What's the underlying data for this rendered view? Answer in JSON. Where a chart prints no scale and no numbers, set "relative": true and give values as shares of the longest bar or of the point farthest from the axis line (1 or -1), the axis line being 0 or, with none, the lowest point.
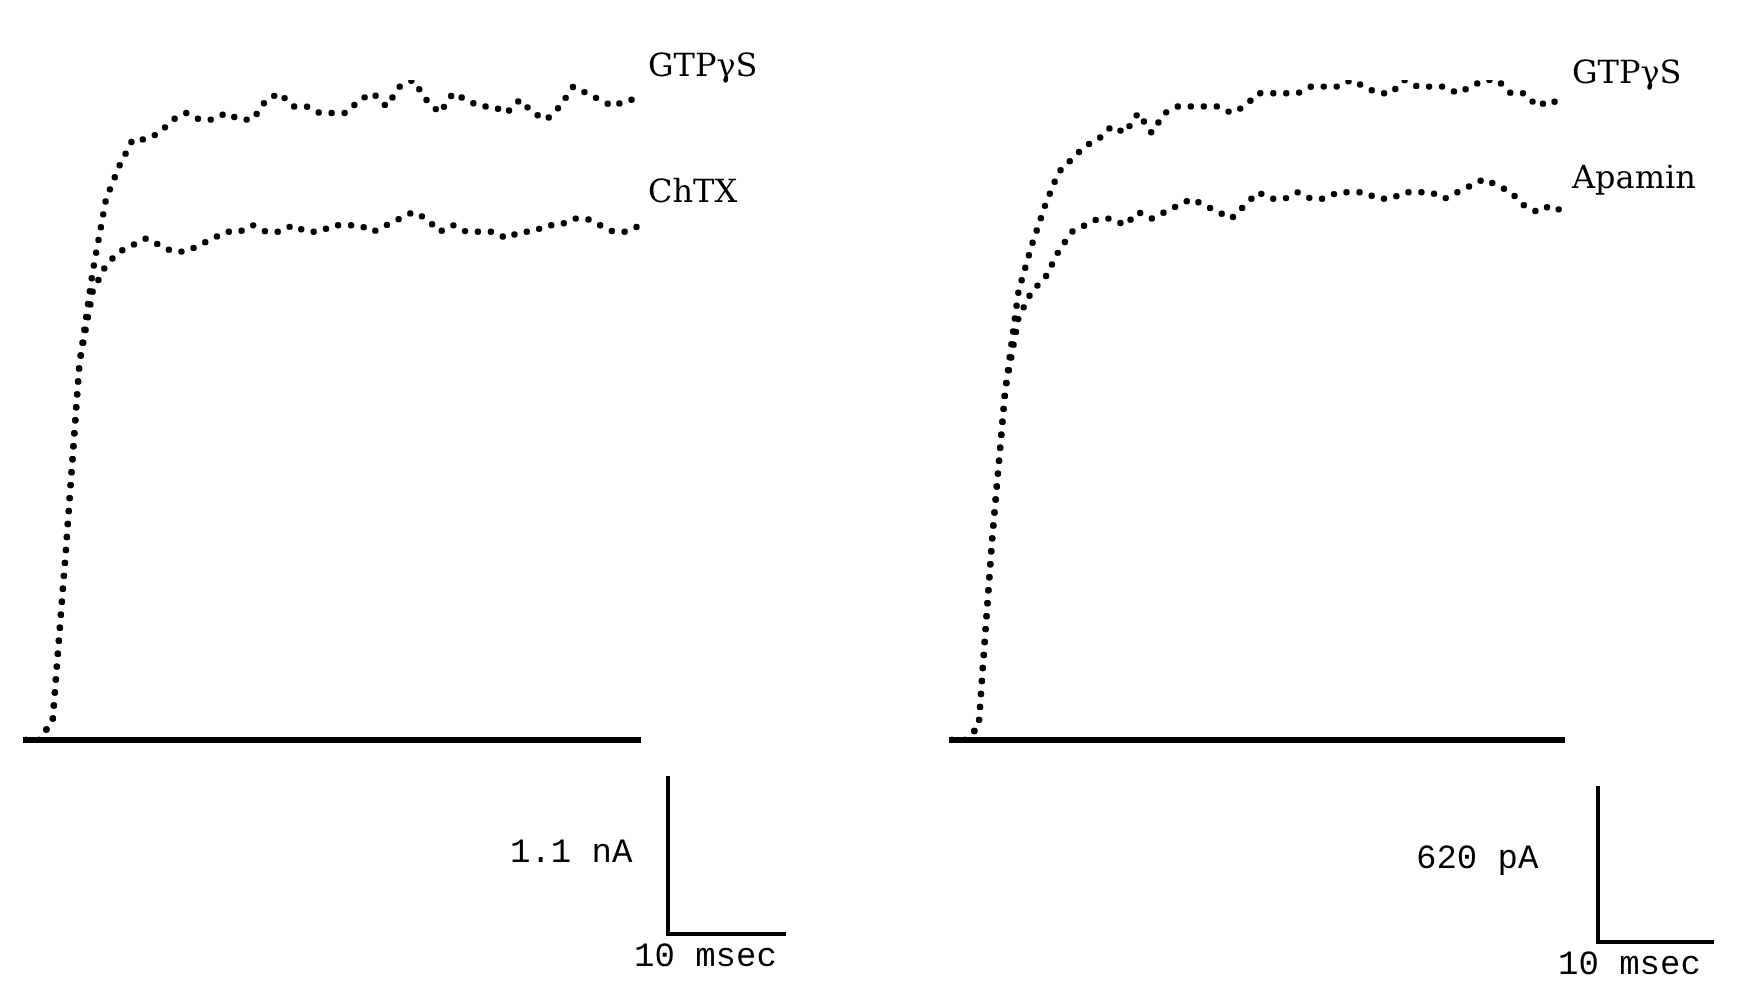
{
  "chart_data": [
    {
      "type": "line",
      "relative": true,
      "line_style": "dotted",
      "legend": "right",
      "categories": [
        null,
        null,
        null,
        null,
        null,
        null,
        null,
        null,
        null,
        null,
        null,
        null,
        null,
        null,
        null,
        null,
        null,
        null,
        null,
        null,
        null,
        null,
        null,
        null,
        null,
        null,
        null,
        null,
        null,
        null,
        null,
        null,
        null,
        null,
        null,
        null,
        null,
        null,
        null,
        null,
        null,
        null,
        null,
        null,
        null,
        null,
        null
      ],
      "series": [
        {
          "name": "GTPγS",
          "color": "#000000",
          "values": [
            0,
            0,
            0.03,
            0.29,
            0.57,
            0.71,
            0.82,
            0.87,
            0.91,
            0.91,
            0.92,
            0.94,
            0.95,
            0.94,
            0.94,
            0.95,
            0.94,
            0.94,
            0.97,
            0.98,
            0.96,
            0.96,
            0.95,
            0.95,
            0.95,
            0.97,
            0.98,
            0.96,
            0.99,
            1,
            0.97,
            0.95,
            0.98,
            0.97,
            0.96,
            0.96,
            0.95,
            0.97,
            0.95,
            0.94,
            0.96,
            0.99,
            0.98,
            0.97,
            0.96,
            0.97,
            0.97
          ]
        },
        {
          "name": "ChTX",
          "color": "#000000",
          "values": [
            0,
            0,
            0.03,
            0.29,
            0.57,
            0.68,
            0.72,
            0.74,
            0.75,
            0.76,
            0.75,
            0.74,
            0.74,
            0.75,
            0.76,
            0.77,
            0.77,
            0.78,
            0.77,
            0.77,
            0.78,
            0.77,
            0.77,
            0.78,
            0.78,
            0.78,
            0.77,
            0.78,
            0.79,
            0.8,
            0.79,
            0.77,
            0.78,
            0.77,
            0.77,
            0.77,
            0.76,
            0.77,
            0.77,
            0.78,
            0.78,
            0.79,
            0.79,
            0.78,
            0.77,
            0.77,
            0.78
          ]
        }
      ],
      "annotations": [
        "1.1 nA",
        "10 msec"
      ]
    },
    {
      "type": "line",
      "relative": true,
      "line_style": "dotted",
      "legend": "right",
      "categories": [
        null,
        null,
        null,
        null,
        null,
        null,
        null,
        null,
        null,
        null,
        null,
        null,
        null,
        null,
        null,
        null,
        null,
        null,
        null,
        null,
        null,
        null,
        null,
        null,
        null,
        null,
        null,
        null,
        null,
        null,
        null,
        null,
        null,
        null,
        null,
        null,
        null,
        null,
        null,
        null,
        null,
        null,
        null,
        null,
        null,
        null,
        null
      ],
      "series": [
        {
          "name": "GTPγS",
          "color": "#000000",
          "values": [
            0,
            0,
            0.02,
            0.3,
            0.53,
            0.68,
            0.75,
            0.81,
            0.86,
            0.88,
            0.9,
            0.91,
            0.93,
            0.92,
            0.95,
            0.92,
            0.95,
            0.96,
            0.96,
            0.96,
            0.96,
            0.95,
            0.96,
            0.98,
            0.98,
            0.98,
            0.98,
            0.99,
            0.99,
            0.99,
            1,
            0.99,
            0.98,
            0.98,
            1,
            0.99,
            0.99,
            0.99,
            0.98,
            0.99,
            1,
            1,
            0.98,
            0.98,
            0.96,
            0.97,
            0.96
          ]
        },
        {
          "name": "Apamin",
          "color": "#000000",
          "values": [
            0,
            0,
            0.02,
            0.3,
            0.53,
            0.64,
            0.68,
            0.7,
            0.74,
            0.77,
            0.78,
            0.79,
            0.79,
            0.78,
            0.8,
            0.79,
            0.8,
            0.81,
            0.82,
            0.81,
            0.8,
            0.79,
            0.81,
            0.83,
            0.82,
            0.82,
            0.83,
            0.82,
            0.82,
            0.83,
            0.83,
            0.83,
            0.82,
            0.82,
            0.83,
            0.83,
            0.83,
            0.82,
            0.83,
            0.84,
            0.85,
            0.84,
            0.83,
            0.81,
            0.8,
            0.81,
            0.8
          ]
        }
      ],
      "annotations": [
        "620 pA",
        "10 msec"
      ]
    }
  ]
}
